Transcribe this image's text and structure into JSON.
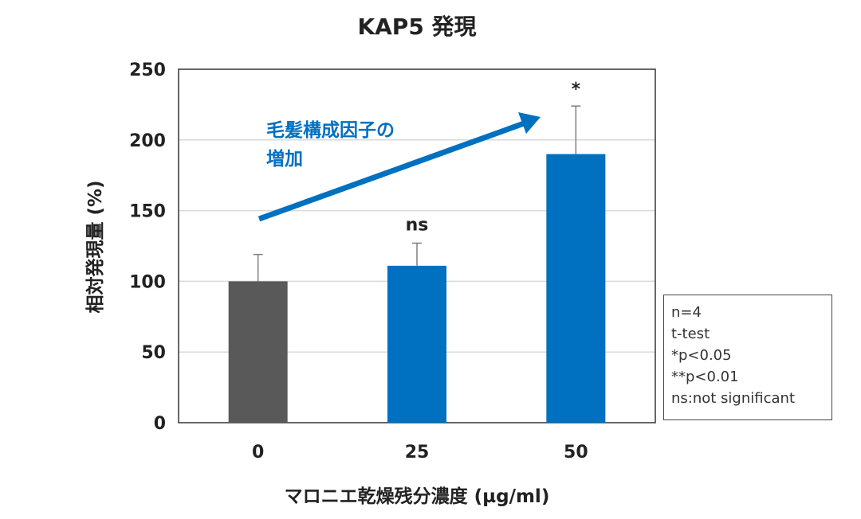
{
  "chart_data": {
    "type": "bar",
    "title": "KAP5 発現",
    "xlabel": "マロニエ乾燥残分濃度 (µg/ml)",
    "ylabel": "相対発現量 (%)",
    "categories": [
      "0",
      "25",
      "50"
    ],
    "values": [
      100,
      111,
      190
    ],
    "error_upper": [
      119,
      127,
      224
    ],
    "bar_colors": [
      "#595959",
      "#0070C0",
      "#0070C0"
    ],
    "significance": [
      "",
      "ns",
      "*"
    ],
    "ylim": [
      0,
      250
    ],
    "yticks": [
      "0",
      "50",
      "100",
      "150",
      "200",
      "250"
    ],
    "grid": true,
    "annotation": {
      "line1": "毛髪構成因子の",
      "line2": "増加",
      "color": "#0070C0"
    },
    "legend": {
      "placement": "right",
      "lines": [
        "n=4",
        "t-test",
        "*p<0.05",
        "**p<0.01",
        "ns:not significant"
      ]
    }
  }
}
